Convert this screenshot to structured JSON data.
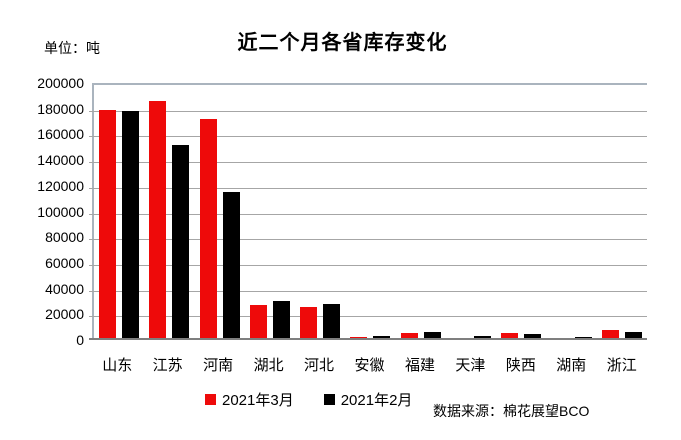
{
  "title": "近二个月各省库存变化",
  "unit_label": "单位：吨",
  "source_label": "数据来源：棉花展望BCO",
  "colors": {
    "series_march": "#ee0a0a",
    "series_february": "#000000",
    "gridline": "#a6a6a6",
    "axis_border": "#aab4be",
    "axis_bottom": "#7f7f7f",
    "background": "#ffffff",
    "text": "#000000"
  },
  "chart_data": {
    "type": "bar",
    "title": "近二个月各省库存变化",
    "unit": "吨",
    "categories": [
      "山东",
      "江苏",
      "河南",
      "湖北",
      "河北",
      "安徽",
      "福建",
      "天津",
      "陕西",
      "湖南",
      "浙江"
    ],
    "series": [
      {
        "name": "2021年3月",
        "color": "#ee0a0a",
        "values": [
          179000,
          186000,
          172000,
          27000,
          26000,
          2500,
          5500,
          1500,
          5500,
          1500,
          8000
        ]
      },
      {
        "name": "2021年2月",
        "color": "#000000",
        "values": [
          178000,
          152000,
          115000,
          30000,
          28000,
          3000,
          6000,
          3000,
          5000,
          2000,
          6000
        ]
      }
    ],
    "ylim": [
      0,
      200000
    ],
    "ytick_step": 20000,
    "ytick_labels": [
      "0",
      "20000",
      "40000",
      "60000",
      "80000",
      "100000",
      "120000",
      "140000",
      "160000",
      "180000",
      "200000"
    ],
    "grid": true,
    "legend_position": "bottom",
    "source": "数据来源：棉花展望BCO"
  }
}
